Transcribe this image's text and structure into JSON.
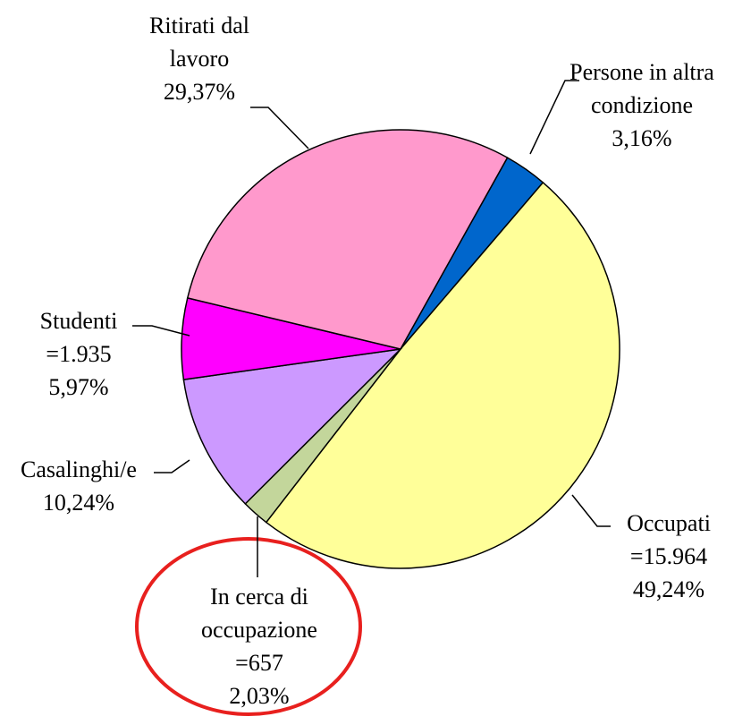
{
  "chart_data": {
    "type": "pie",
    "categories": [
      "Persone in altra condizione",
      "Occupati",
      "In cerca di occupazione",
      "Casalinghi/e",
      "Studenti",
      "Ritirati dal lavoro"
    ],
    "values": [
      3.16,
      49.24,
      2.03,
      10.24,
      5.97,
      29.37
    ],
    "value_labels": [
      "3,16%",
      "49,24%",
      "2,03%",
      "10,24%",
      "5,97%",
      "29,37%"
    ],
    "count_labels": [
      null,
      "=15.964",
      "=657",
      null,
      "=1.935",
      null
    ],
    "colors": [
      "#0066cc",
      "#ffff99",
      "#c3d69b",
      "#cc99ff",
      "#ff00ff",
      "#ff99cc"
    ]
  }
}
